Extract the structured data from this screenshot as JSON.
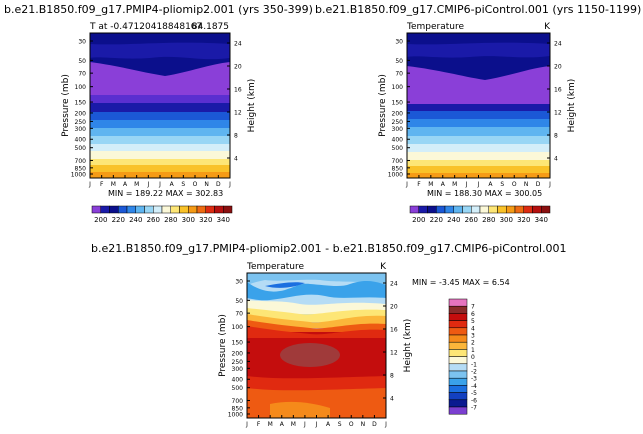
{
  "figure": {
    "left_title": "b.e21.B1850.f09_g17.PMIP4-pliomip2.001 (yrs 350-399)",
    "right_title": "b.e21.B1850.f09_g17.CMIP6-piControl.001 (yrs 1150-1199)",
    "diff_title": "b.e21.B1850.f09_g17.PMIP4-pliomip2.001 - b.e21.B1850.f09_g17.CMIP6-piControl.001",
    "axis_left_label": "Pressure (mb)",
    "axis_right_label": "Height (km)"
  },
  "chart_data": [
    {
      "type": "heatmap",
      "panel": "left",
      "title_left": "T at -0.47120418848167",
      "title_right": "84.1875",
      "stats": "MIN = 189.22   MAX = 302.83",
      "min": 189.22,
      "max": 302.83,
      "x": [
        "J",
        "F",
        "M",
        "A",
        "M",
        "J",
        "J",
        "A",
        "S",
        "O",
        "N",
        "D",
        "J"
      ],
      "y_ticks_pressure": [
        "30",
        "50",
        "70",
        "100",
        "150",
        "200",
        "250",
        "300",
        "400",
        "500",
        "700",
        "850",
        "1000"
      ],
      "y_ticks_height": [
        "24",
        "20",
        "16",
        "12",
        "8",
        "4"
      ],
      "colorbar_labels": [
        "200",
        "220",
        "240",
        "260",
        "280",
        "300",
        "320",
        "340"
      ],
      "units": ""
    },
    {
      "type": "heatmap",
      "panel": "right",
      "title_left": "Temperature",
      "title_right": "K",
      "stats": "MIN = 188.30   MAX = 300.05",
      "min": 188.3,
      "max": 300.05,
      "x": [
        "J",
        "F",
        "M",
        "A",
        "M",
        "J",
        "J",
        "A",
        "S",
        "O",
        "N",
        "D",
        "J"
      ],
      "y_ticks_pressure": [
        "30",
        "50",
        "70",
        "100",
        "150",
        "200",
        "250",
        "300",
        "400",
        "500",
        "700",
        "850",
        "1000"
      ],
      "y_ticks_height": [
        "24",
        "20",
        "16",
        "12",
        "8",
        "4"
      ],
      "colorbar_labels": [
        "200",
        "220",
        "240",
        "260",
        "280",
        "300",
        "320",
        "340"
      ]
    },
    {
      "type": "heatmap",
      "panel": "difference",
      "title_left": "Temperature",
      "title_right": "K",
      "stats": "MIN = -3.45  MAX = 6.54",
      "min": -3.45,
      "max": 6.54,
      "x": [
        "J",
        "F",
        "M",
        "A",
        "M",
        "J",
        "J",
        "A",
        "S",
        "O",
        "N",
        "D",
        "J"
      ],
      "y_ticks_pressure": [
        "30",
        "50",
        "70",
        "100",
        "150",
        "200",
        "250",
        "300",
        "400",
        "500",
        "700",
        "850",
        "1000"
      ],
      "y_ticks_height": [
        "24",
        "20",
        "16",
        "12",
        "8",
        "4"
      ],
      "colorbar_labels": [
        "7",
        "6",
        "5",
        "4",
        "3",
        "2",
        "1",
        "0",
        "-1",
        "-2",
        "-3",
        "-4",
        "-5",
        "-6",
        "-7"
      ]
    }
  ],
  "colors": {
    "abs_scale": [
      "#7b2fd6",
      "#5a2fd0",
      "#2026b8",
      "#0b0f8c",
      "#1b58d6",
      "#2f86e8",
      "#5fb5f0",
      "#98d6f5",
      "#d3eef9",
      "#fbf8d8",
      "#fde676",
      "#f9c229",
      "#f59b16",
      "#ee6b12",
      "#dd2c12",
      "#b5100f",
      "#8a1010"
    ],
    "abs_cbar": [
      "#8a3fd8",
      "#1a1aa8",
      "#0b0f8c",
      "#1b58d6",
      "#2f86e8",
      "#5fb5f0",
      "#98d6f5",
      "#d3eef9",
      "#fbf8d8",
      "#fde676",
      "#f9c229",
      "#f59b16",
      "#ee6b12",
      "#dd2c12",
      "#b5100f",
      "#8a1010"
    ],
    "diff_cbar": [
      "#e673bf",
      "#8a2a2a",
      "#c40d0d",
      "#e02a10",
      "#ee5a12",
      "#f58a1a",
      "#fbb63a",
      "#fde676",
      "#fbf8d8",
      "#b5dcf5",
      "#7cc3f0",
      "#3aa2ea",
      "#1b6fe0",
      "#1340c0",
      "#0b1a90",
      "#7b3fd0"
    ]
  }
}
